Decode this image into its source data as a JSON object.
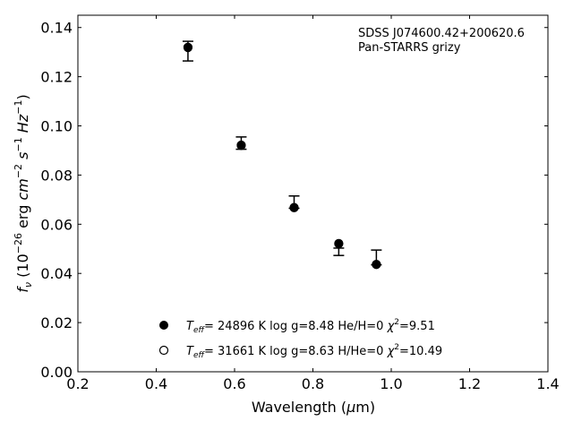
{
  "chart_data": {
    "type": "scatter",
    "xlabel": "Wavelength (μm)",
    "ylabel": "fν (10⁻²⁶ erg cm⁻² s⁻¹ Hz⁻¹)",
    "xlim": [
      0.2,
      1.4
    ],
    "ylim": [
      0.0,
      0.145
    ],
    "x_ticks": [
      "0.2",
      "0.4",
      "0.6",
      "0.8",
      "1.0",
      "1.2",
      "1.4"
    ],
    "y_ticks": [
      "0.00",
      "0.02",
      "0.04",
      "0.06",
      "0.08",
      "0.10",
      "0.12",
      "0.14"
    ],
    "grid": false,
    "annotations": [
      "SDSS J074600.42+200620.6",
      "Pan-STARRS grizy"
    ],
    "observed": [
      {
        "x": 0.481,
        "y": 0.1304,
        "err_low": 0.004,
        "err_high": 0.004
      },
      {
        "x": 0.617,
        "y": 0.093,
        "err_low": 0.0025,
        "err_high": 0.0025
      },
      {
        "x": 0.752,
        "y": 0.069,
        "err_low": 0.0025,
        "err_high": 0.0025
      },
      {
        "x": 0.866,
        "y": 0.0488,
        "err_low": 0.0015,
        "err_high": 0.0015
      },
      {
        "x": 0.962,
        "y": 0.0465,
        "err_low": 0.003,
        "err_high": 0.003
      }
    ],
    "series": [
      {
        "name": "Teff= 24896 K  log g=8.48  He/H=0  χ²=9.51",
        "marker": "filled-circle",
        "x": [
          0.481,
          0.617,
          0.752,
          0.866,
          0.962
        ],
        "y": [
          0.1318,
          0.092,
          0.0667,
          0.0522,
          0.0436
        ]
      },
      {
        "name": "Teff= 31661 K  log g=8.63  H/He=0  χ²=10.49",
        "marker": "open-circle",
        "x": [
          0.481,
          0.617,
          0.752,
          0.866,
          0.962
        ],
        "y": [
          0.132,
          0.0922,
          0.0668,
          0.0521,
          0.0437
        ]
      }
    ],
    "legend_position": "lower-center"
  }
}
